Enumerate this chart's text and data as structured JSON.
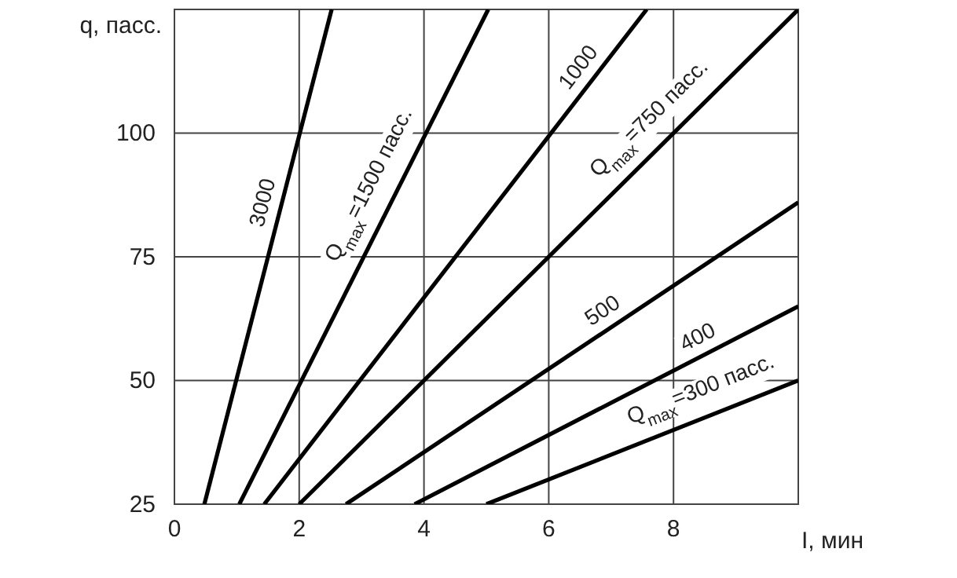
{
  "chart_data": {
    "type": "line",
    "xlabel": "I, мин",
    "ylabel": "q, пасс.",
    "xlim": [
      0,
      10
    ],
    "ylim": [
      25,
      125
    ],
    "xticks": [
      0,
      2,
      4,
      6,
      8
    ],
    "yticks": [
      25,
      50,
      75,
      100
    ],
    "grid": true,
    "legend": false,
    "marker": "none",
    "line_style": "solid",
    "series": [
      {
        "name": "3000",
        "color": "#000000",
        "x": [
          0.48,
          2.52
        ],
        "values": [
          25,
          125
        ]
      },
      {
        "name": "Q$_{max}$=1500 пасс.",
        "color": "#000000",
        "x": [
          1.04,
          5.03
        ],
        "values": [
          25,
          125
        ]
      },
      {
        "name": "1000",
        "color": "#000000",
        "x": [
          1.44,
          7.57
        ],
        "values": [
          25,
          125
        ]
      },
      {
        "name": "Q$_{max}$=750 пасс.",
        "color": "#000000",
        "x": [
          2.0,
          10
        ],
        "values": [
          25,
          125
        ]
      },
      {
        "name": "500",
        "color": "#000000",
        "x": [
          2.75,
          10
        ],
        "values": [
          25,
          86
        ]
      },
      {
        "name": "400",
        "color": "#000000",
        "x": [
          3.85,
          10
        ],
        "values": [
          25,
          65
        ]
      },
      {
        "name": "Q$_{max}$=300 пасс.",
        "color": "#000000",
        "x": [
          5.0,
          10
        ],
        "values": [
          25,
          50
        ]
      }
    ]
  }
}
